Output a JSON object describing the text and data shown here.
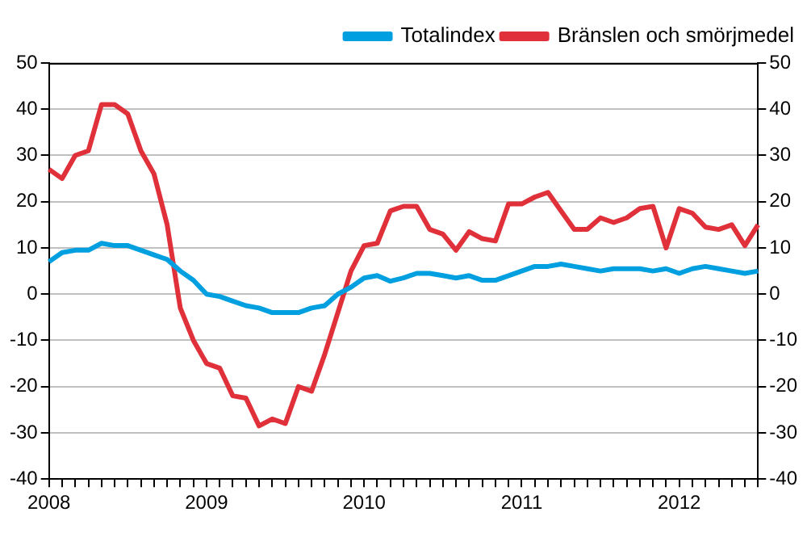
{
  "chart_data": {
    "type": "line",
    "categories": [
      "2008",
      null,
      null,
      null,
      null,
      null,
      null,
      null,
      null,
      null,
      null,
      null,
      "2009",
      null,
      null,
      null,
      null,
      null,
      null,
      null,
      null,
      null,
      null,
      null,
      "2010",
      null,
      null,
      null,
      null,
      null,
      null,
      null,
      null,
      null,
      null,
      null,
      "2011",
      null,
      null,
      null,
      null,
      null,
      null,
      null,
      null,
      null,
      null,
      null,
      "2012",
      null,
      null,
      null,
      null,
      null,
      null
    ],
    "series": [
      {
        "name": "Totalindex",
        "color": "#00a0e0",
        "values": [
          7,
          9,
          9.5,
          9.5,
          11,
          10.5,
          10.5,
          9.5,
          8.5,
          7.5,
          5,
          3,
          0,
          -0.5,
          -1.5,
          -2.5,
          -3,
          -4,
          -4,
          -4,
          -3,
          -2.5,
          0,
          1.5,
          3.5,
          4,
          2.8,
          3.5,
          4.5,
          4.5,
          4,
          3.5,
          4,
          3,
          3,
          4,
          5,
          6,
          6,
          6.5,
          6,
          5.5,
          5,
          5.5,
          5.5,
          5.5,
          5,
          5.5,
          4.5,
          5.5,
          6,
          5.5,
          5,
          4.5,
          5
        ]
      },
      {
        "name": "Bränslen och smörjmedel",
        "color": "#e0303a",
        "values": [
          27,
          25,
          30,
          31,
          41,
          41,
          39,
          31,
          26,
          15,
          -3,
          -10,
          -15,
          -16,
          -22,
          -22.5,
          -28.5,
          -27,
          -28,
          -20,
          -21,
          -13,
          -4,
          5,
          10.5,
          11,
          18,
          19,
          19,
          14,
          13,
          9.5,
          13.5,
          12,
          11.5,
          19.5,
          19.5,
          21,
          22,
          18,
          14,
          14,
          16.5,
          15.5,
          16.5,
          18.5,
          19,
          10,
          18.5,
          17.5,
          14.5,
          14,
          15,
          10.5,
          15
        ]
      }
    ],
    "ylim": [
      -40,
      50
    ],
    "yticks": [
      -40,
      -30,
      -20,
      -10,
      0,
      10,
      20,
      30,
      40,
      50
    ],
    "y2lim": [
      -40,
      50
    ],
    "y2ticks": [
      -40,
      -30,
      -20,
      -10,
      0,
      10,
      20,
      30,
      40,
      50
    ],
    "grid": "y",
    "legend": "top right",
    "marker": "none",
    "line_style": "solid"
  }
}
